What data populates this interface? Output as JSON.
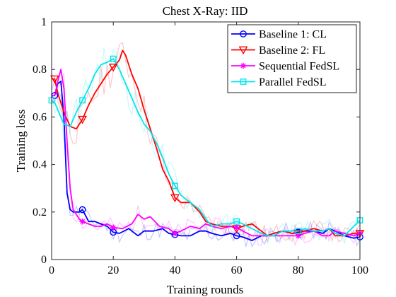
{
  "chart_data": {
    "type": "line",
    "title": "Chest X-Ray: IID",
    "xlabel": "Training rounds",
    "ylabel": "Training loss",
    "xlim": [
      0,
      100
    ],
    "ylim": [
      0,
      1
    ],
    "xticks": [
      0,
      20,
      40,
      60,
      80,
      100
    ],
    "yticks": [
      0,
      0.2,
      0.4,
      0.6,
      0.8,
      1
    ],
    "xtick_labels": [
      "0",
      "20",
      "40",
      "60",
      "80",
      "100"
    ],
    "ytick_labels": [
      "0",
      "0.2",
      "0.4",
      "0.6",
      "0.8",
      "1"
    ],
    "grid": false,
    "legend_position": "top-right",
    "series": [
      {
        "name": "Baseline 1: CL",
        "color": "#0000ff",
        "marker": "circle",
        "marker_x": [
          1,
          10,
          20,
          40,
          60,
          80,
          100
        ],
        "x": [
          0,
          1,
          2,
          3,
          4,
          5,
          6,
          7,
          8,
          9,
          10,
          12,
          14,
          16,
          18,
          20,
          22,
          25,
          28,
          30,
          33,
          36,
          38,
          40,
          42,
          45,
          48,
          50,
          52,
          55,
          58,
          60,
          62,
          65,
          68,
          70,
          72,
          75,
          78,
          80,
          82,
          85,
          88,
          90,
          92,
          95,
          98,
          100
        ],
        "values": [
          0.69,
          0.69,
          0.74,
          0.75,
          0.6,
          0.28,
          0.21,
          0.2,
          0.2,
          0.2,
          0.21,
          0.16,
          0.16,
          0.15,
          0.14,
          0.115,
          0.11,
          0.13,
          0.1,
          0.12,
          0.12,
          0.13,
          0.11,
          0.105,
          0.1,
          0.1,
          0.12,
          0.12,
          0.11,
          0.1,
          0.11,
          0.1,
          0.095,
          0.08,
          0.1,
          0.1,
          0.11,
          0.12,
          0.11,
          0.115,
          0.12,
          0.12,
          0.11,
          0.13,
          0.12,
          0.1,
          0.09,
          0.095
        ]
      },
      {
        "name": "Baseline 2: FL",
        "color": "#ff0000",
        "marker": "triangle-down",
        "marker_x": [
          1,
          10,
          20,
          40,
          60,
          80,
          100
        ],
        "x": [
          0,
          1,
          2,
          4,
          6,
          8,
          10,
          12,
          14,
          16,
          18,
          20,
          22,
          23,
          24,
          26,
          28,
          30,
          32,
          34,
          36,
          38,
          40,
          42,
          45,
          48,
          50,
          52,
          55,
          58,
          60,
          62,
          65,
          68,
          70,
          72,
          75,
          78,
          80,
          82,
          85,
          88,
          90,
          92,
          95,
          98,
          100
        ],
        "values": [
          0.76,
          0.76,
          0.7,
          0.62,
          0.56,
          0.55,
          0.59,
          0.65,
          0.7,
          0.74,
          0.78,
          0.81,
          0.84,
          0.88,
          0.86,
          0.78,
          0.72,
          0.63,
          0.55,
          0.47,
          0.38,
          0.33,
          0.26,
          0.24,
          0.24,
          0.2,
          0.16,
          0.15,
          0.14,
          0.14,
          0.13,
          0.14,
          0.15,
          0.12,
          0.1,
          0.11,
          0.12,
          0.11,
          0.11,
          0.12,
          0.13,
          0.12,
          0.13,
          0.1,
          0.1,
          0.11,
          0.11
        ]
      },
      {
        "name": "Sequential FedSL",
        "color": "#ff00ff",
        "marker": "asterisk",
        "marker_x": [
          10,
          20,
          40,
          60,
          80,
          100
        ],
        "x": [
          0,
          1,
          2,
          3,
          4,
          5,
          6,
          7,
          8,
          9,
          10,
          12,
          14,
          16,
          18,
          20,
          23,
          26,
          28,
          30,
          32,
          35,
          38,
          40,
          42,
          45,
          48,
          50,
          52,
          55,
          58,
          60,
          62,
          65,
          68,
          70,
          72,
          75,
          78,
          80,
          82,
          85,
          88,
          90,
          92,
          95,
          98,
          100
        ],
        "values": [
          0.69,
          0.69,
          0.75,
          0.8,
          0.72,
          0.5,
          0.3,
          0.21,
          0.19,
          0.17,
          0.16,
          0.15,
          0.14,
          0.14,
          0.15,
          0.135,
          0.13,
          0.15,
          0.19,
          0.17,
          0.18,
          0.14,
          0.13,
          0.11,
          0.12,
          0.14,
          0.13,
          0.15,
          0.14,
          0.13,
          0.14,
          0.135,
          0.12,
          0.1,
          0.1,
          0.1,
          0.1,
          0.1,
          0.1,
          0.1,
          0.11,
          0.12,
          0.1,
          0.1,
          0.12,
          0.11,
          0.1,
          0.11
        ]
      },
      {
        "name": "Parallel FedSL",
        "color": "#00e5ee",
        "marker": "square",
        "marker_x": [
          0,
          10,
          20,
          40,
          60,
          80,
          100
        ],
        "x": [
          0,
          1,
          2,
          4,
          6,
          8,
          10,
          12,
          14,
          16,
          18,
          20,
          22,
          24,
          26,
          28,
          30,
          32,
          34,
          36,
          38,
          40,
          42,
          45,
          48,
          50,
          52,
          55,
          58,
          60,
          62,
          65,
          68,
          70,
          72,
          75,
          78,
          80,
          82,
          85,
          88,
          90,
          92,
          95,
          98,
          100
        ],
        "values": [
          0.67,
          0.66,
          0.63,
          0.57,
          0.56,
          0.62,
          0.67,
          0.72,
          0.78,
          0.82,
          0.83,
          0.845,
          0.8,
          0.74,
          0.68,
          0.62,
          0.57,
          0.54,
          0.49,
          0.43,
          0.36,
          0.31,
          0.27,
          0.24,
          0.21,
          0.17,
          0.14,
          0.15,
          0.15,
          0.16,
          0.15,
          0.13,
          0.11,
          0.1,
          0.1,
          0.12,
          0.12,
          0.12,
          0.13,
          0.12,
          0.12,
          0.13,
          0.11,
          0.1,
          0.14,
          0.165
        ]
      }
    ]
  }
}
